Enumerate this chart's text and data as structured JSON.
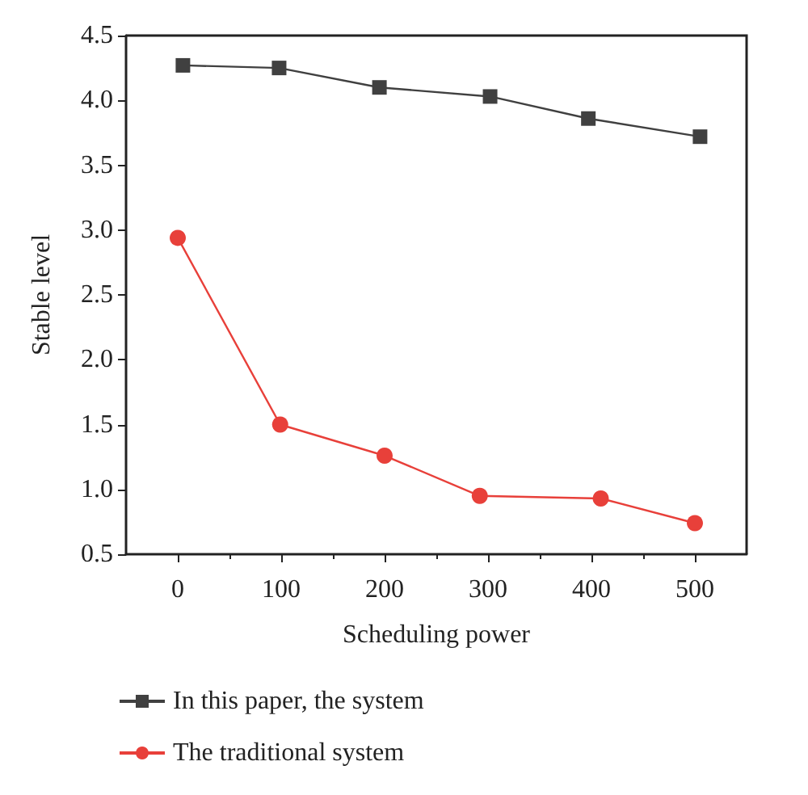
{
  "chart_data": {
    "type": "line",
    "xlabel": "Scheduling power",
    "ylabel": "Stable level",
    "xlim": [
      -50,
      550
    ],
    "xticks": [
      0,
      100,
      200,
      300,
      400,
      500
    ],
    "ylim": [
      0.5,
      4.5
    ],
    "yticks": [
      0.5,
      {
        "value": 1,
        "label": "1.0"
      },
      1.5,
      {
        "value": 2,
        "label": "2.0"
      },
      2.5,
      {
        "value": 3,
        "label": "3.0"
      },
      3.5,
      {
        "value": 4,
        "label": "4.0"
      },
      4.5
    ],
    "grid": false,
    "legend": "bottom",
    "series": [
      {
        "name": "In this paper, the system",
        "color": "#404040",
        "marker": "square",
        "x": [
          5,
          98,
          195,
          302,
          397,
          505
        ],
        "values": [
          4.27,
          4.25,
          4.1,
          4.03,
          3.86,
          3.72
        ]
      },
      {
        "name": "The traditional system",
        "color": "#e8403a",
        "marker": "circle",
        "x": [
          0,
          99,
          200,
          292,
          409,
          500
        ],
        "values": [
          2.94,
          1.5,
          1.26,
          0.95,
          0.93,
          0.74
        ]
      }
    ]
  }
}
